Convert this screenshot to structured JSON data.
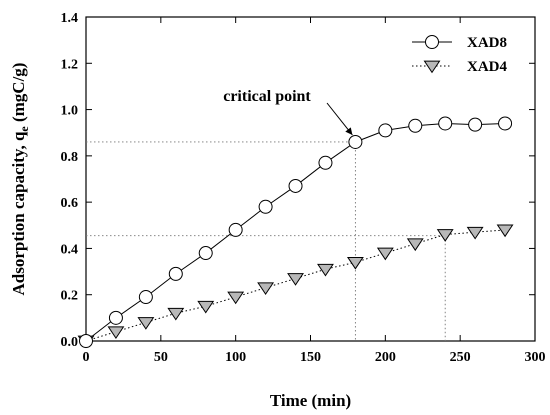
{
  "chart_data": {
    "type": "line",
    "xlabel": "Time (min)",
    "ylabel_main": "Adsorption capacity, q",
    "ylabel_sub": "e",
    "ylabel_unit": " (mgC/g)",
    "xlim": [
      0,
      300
    ],
    "ylim": [
      0,
      1.4
    ],
    "xticks": [
      "0",
      "50",
      "100",
      "150",
      "200",
      "250",
      "300"
    ],
    "yticks": [
      "0.0",
      "0.2",
      "0.4",
      "0.6",
      "0.8",
      "1.0",
      "1.2",
      "1.4"
    ],
    "grid": false,
    "legend_position": "top-right",
    "series": [
      {
        "name": "XAD8",
        "marker": "circle",
        "line": "solid",
        "x": [
          0,
          20,
          40,
          60,
          80,
          100,
          120,
          140,
          160,
          180,
          200,
          220,
          240,
          260,
          280
        ],
        "y": [
          0.0,
          0.1,
          0.19,
          0.29,
          0.38,
          0.48,
          0.58,
          0.67,
          0.77,
          0.86,
          0.91,
          0.93,
          0.94,
          0.935,
          0.94
        ]
      },
      {
        "name": "XAD4",
        "marker": "triangle-down",
        "line": "dotted",
        "x": [
          0,
          20,
          40,
          60,
          80,
          100,
          120,
          140,
          160,
          180,
          200,
          220,
          240,
          260,
          280
        ],
        "y": [
          0.0,
          0.04,
          0.08,
          0.12,
          0.15,
          0.19,
          0.23,
          0.27,
          0.31,
          0.34,
          0.38,
          0.42,
          0.46,
          0.47,
          0.48
        ]
      }
    ],
    "annotation": {
      "text": "critical point",
      "x": 180,
      "y": 0.86
    },
    "reference_lines": [
      {
        "x": 180,
        "y": 0.86
      },
      {
        "x": 240,
        "y": 0.455
      }
    ]
  }
}
